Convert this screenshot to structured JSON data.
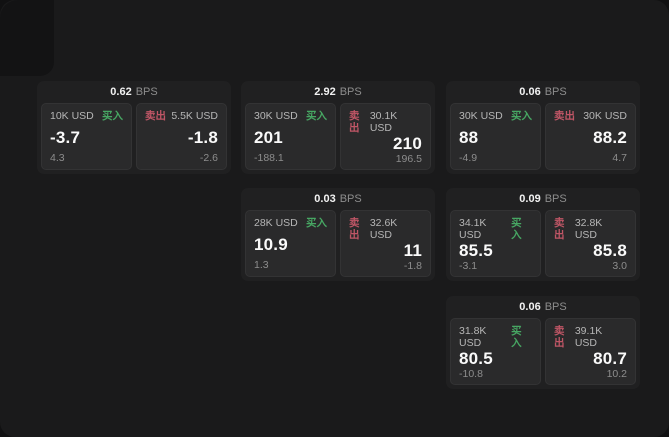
{
  "labels": {
    "bps_unit": "BPS",
    "buy": "买入",
    "sell": "卖出"
  },
  "colors": {
    "buy": "#47a763",
    "sell": "#c05666",
    "price_text": "#fafafa"
  },
  "cards": [
    {
      "bps": "0.62",
      "buy": {
        "amount": "10K USD",
        "value": "-3.7",
        "change": "4.3"
      },
      "sell": {
        "amount": "5.5K USD",
        "value": "-1.8",
        "change": "-2.6"
      }
    },
    {
      "bps": "2.92",
      "buy": {
        "amount": "30K USD",
        "value": "201",
        "change": "-188.1"
      },
      "sell": {
        "amount": "30.1K USD",
        "value": "210",
        "change": "196.5"
      }
    },
    {
      "bps": "0.06",
      "buy": {
        "amount": "30K USD",
        "value": "88",
        "change": "-4.9"
      },
      "sell": {
        "amount": "30K USD",
        "value": "88.2",
        "change": "4.7"
      }
    },
    {
      "bps": "0.03",
      "buy": {
        "amount": "28K USD",
        "value": "10.9",
        "change": "1.3"
      },
      "sell": {
        "amount": "32.6K USD",
        "value": "11",
        "change": "-1.8"
      }
    },
    {
      "bps": "0.09",
      "buy": {
        "amount": "34.1K USD",
        "value": "85.5",
        "change": "-3.1"
      },
      "sell": {
        "amount": "32.8K USD",
        "value": "85.8",
        "change": "3.0"
      }
    },
    {
      "bps": "0.06",
      "buy": {
        "amount": "31.8K USD",
        "value": "80.5",
        "change": "-10.8"
      },
      "sell": {
        "amount": "39.1K USD",
        "value": "80.7",
        "change": "10.2"
      }
    }
  ]
}
